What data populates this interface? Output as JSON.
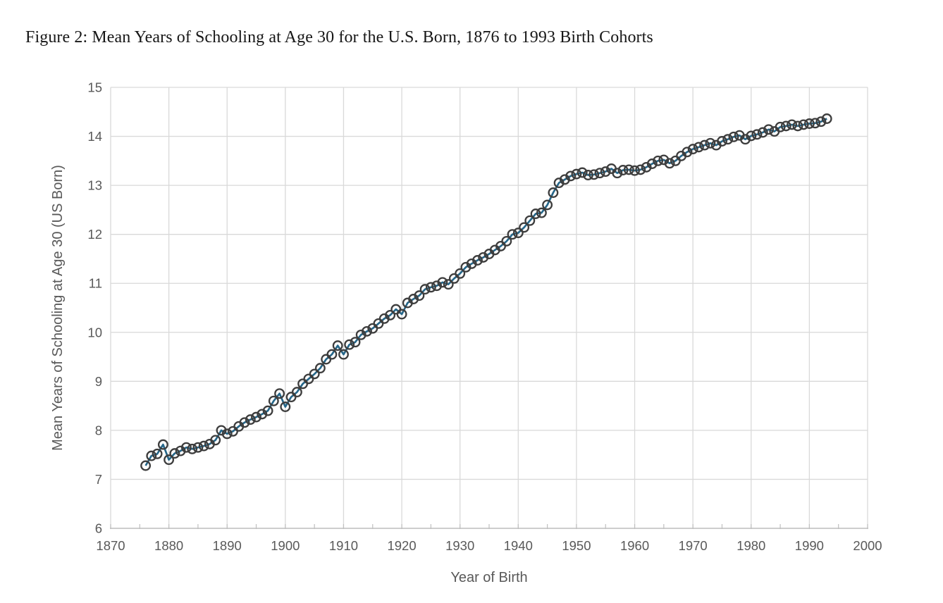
{
  "figure": {
    "title": "Figure 2: Mean Years of Schooling at Age 30 for the U.S. Born, 1876 to 1993 Birth Cohorts"
  },
  "chart_data": {
    "type": "line",
    "title": "Figure 2: Mean Years of Schooling at Age 30 for the U.S. Born, 1876 to 1993 Birth Cohorts",
    "xlabel": "Year of Birth",
    "ylabel": "Mean Years of Schooling at Age 30 (US Born)",
    "xlim": [
      1870,
      2000
    ],
    "ylim": [
      6,
      15
    ],
    "x_major_ticks": [
      1870,
      1880,
      1890,
      1900,
      1910,
      1920,
      1930,
      1940,
      1950,
      1960,
      1970,
      1980,
      1990,
      2000
    ],
    "x_minor_tick_step": 5,
    "y_major_ticks": [
      6,
      7,
      8,
      9,
      10,
      11,
      12,
      13,
      14,
      15
    ],
    "grid": true,
    "legend": "none",
    "marker_style": "open-circle",
    "colors": {
      "line": "#26678A",
      "marker_outline": "#3D3D3D",
      "gridline": "#D9D9D9",
      "axis_line": "#BFBFBF",
      "tick_label": "#595959",
      "title_text": "#171717"
    },
    "series": [
      {
        "name": "Mean years of schooling at age 30, US born",
        "x": [
          1876,
          1877,
          1878,
          1879,
          1880,
          1881,
          1882,
          1883,
          1884,
          1885,
          1886,
          1887,
          1888,
          1889,
          1890,
          1891,
          1892,
          1893,
          1894,
          1895,
          1896,
          1897,
          1898,
          1899,
          1900,
          1901,
          1902,
          1903,
          1904,
          1905,
          1906,
          1907,
          1908,
          1909,
          1910,
          1911,
          1912,
          1913,
          1914,
          1915,
          1916,
          1917,
          1918,
          1919,
          1920,
          1921,
          1922,
          1923,
          1924,
          1925,
          1926,
          1927,
          1928,
          1929,
          1930,
          1931,
          1932,
          1933,
          1934,
          1935,
          1936,
          1937,
          1938,
          1939,
          1940,
          1941,
          1942,
          1943,
          1944,
          1945,
          1946,
          1947,
          1948,
          1949,
          1950,
          1951,
          1952,
          1953,
          1954,
          1955,
          1956,
          1957,
          1958,
          1959,
          1960,
          1961,
          1962,
          1963,
          1964,
          1965,
          1966,
          1967,
          1968,
          1969,
          1970,
          1971,
          1972,
          1973,
          1974,
          1975,
          1976,
          1977,
          1978,
          1979,
          1980,
          1981,
          1982,
          1983,
          1984,
          1985,
          1986,
          1987,
          1988,
          1989,
          1990,
          1991,
          1992,
          1993
        ],
        "y": [
          7.28,
          7.48,
          7.52,
          7.71,
          7.4,
          7.53,
          7.58,
          7.65,
          7.62,
          7.65,
          7.68,
          7.72,
          7.8,
          8.0,
          7.93,
          7.98,
          8.08,
          8.16,
          8.22,
          8.27,
          8.33,
          8.4,
          8.6,
          8.75,
          8.48,
          8.68,
          8.78,
          8.95,
          9.05,
          9.15,
          9.27,
          9.45,
          9.55,
          9.73,
          9.55,
          9.75,
          9.8,
          9.95,
          10.02,
          10.08,
          10.18,
          10.28,
          10.35,
          10.47,
          10.37,
          10.6,
          10.68,
          10.75,
          10.88,
          10.92,
          10.95,
          11.02,
          10.98,
          11.1,
          11.2,
          11.33,
          11.4,
          11.47,
          11.53,
          11.6,
          11.68,
          11.76,
          11.86,
          12.0,
          12.03,
          12.14,
          12.28,
          12.42,
          12.44,
          12.6,
          12.85,
          13.05,
          13.12,
          13.19,
          13.23,
          13.26,
          13.21,
          13.22,
          13.25,
          13.28,
          13.34,
          13.25,
          13.31,
          13.32,
          13.3,
          13.32,
          13.37,
          13.44,
          13.5,
          13.52,
          13.45,
          13.5,
          13.6,
          13.68,
          13.74,
          13.78,
          13.82,
          13.86,
          13.82,
          13.9,
          13.94,
          13.99,
          14.02,
          13.94,
          14.01,
          14.04,
          14.08,
          14.14,
          14.1,
          14.19,
          14.21,
          14.24,
          14.21,
          14.24,
          14.26,
          14.27,
          14.3,
          14.36
        ]
      }
    ]
  }
}
